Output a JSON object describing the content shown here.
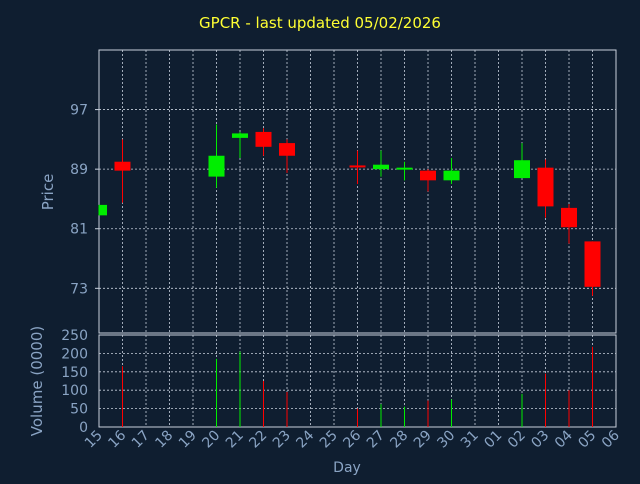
{
  "chart_data": {
    "type": "candlestick",
    "title": "GPCR - last updated 05/02/2026",
    "price_panel": {
      "ylabel": "Price",
      "ylim": [
        67,
        105
      ],
      "yticks": [
        73,
        81,
        89,
        97
      ]
    },
    "volume_panel": {
      "ylabel": "Volume (0000)",
      "ylim": [
        0,
        250
      ],
      "yticks": [
        0,
        50,
        100,
        150,
        200,
        250
      ]
    },
    "xlabel": "Day",
    "x_tick_labels": [
      "15",
      "16",
      "17",
      "18",
      "19",
      "20",
      "21",
      "22",
      "23",
      "24",
      "25",
      "26",
      "27",
      "28",
      "29",
      "30",
      "31",
      "01",
      "02",
      "03",
      "04",
      "05",
      "06"
    ],
    "grid": true,
    "colors": {
      "up": "#00ee00",
      "down": "#ff0000",
      "title": "#ffff33",
      "axis_text": "#8aa4c4",
      "background": "#0f1e30",
      "grid": "#c8d0dc"
    },
    "candles": [
      {
        "day": "15",
        "open": 82.8,
        "high": 84.2,
        "low": 82.8,
        "close": 84.2,
        "volume": 0
      },
      {
        "day": "16",
        "open": 90.0,
        "high": 93.0,
        "low": 84.5,
        "close": 88.8,
        "volume": 165
      },
      {
        "day": "20",
        "open": 88.0,
        "high": 95.0,
        "low": 86.5,
        "close": 90.8,
        "volume": 185
      },
      {
        "day": "21",
        "open": 93.2,
        "high": 94.0,
        "low": 90.5,
        "close": 93.8,
        "volume": 205
      },
      {
        "day": "22",
        "open": 94.0,
        "high": 94.5,
        "low": 90.8,
        "close": 92.0,
        "volume": 125
      },
      {
        "day": "23",
        "open": 92.5,
        "high": 93.0,
        "low": 88.5,
        "close": 90.8,
        "volume": 95
      },
      {
        "day": "26",
        "open": 89.5,
        "high": 91.5,
        "low": 87.0,
        "close": 89.3,
        "volume": 50
      },
      {
        "day": "27",
        "open": 89.0,
        "high": 91.5,
        "low": 88.0,
        "close": 89.6,
        "volume": 62
      },
      {
        "day": "28",
        "open": 89.0,
        "high": 90.0,
        "low": 87.5,
        "close": 89.2,
        "volume": 55
      },
      {
        "day": "29",
        "open": 88.8,
        "high": 89.0,
        "low": 86.0,
        "close": 87.5,
        "volume": 72
      },
      {
        "day": "30",
        "open": 87.5,
        "high": 90.5,
        "low": 87.0,
        "close": 88.8,
        "volume": 75
      },
      {
        "day": "02",
        "open": 87.8,
        "high": 92.5,
        "low": 87.8,
        "close": 90.2,
        "volume": 90
      },
      {
        "day": "03",
        "open": 89.2,
        "high": 90.3,
        "low": 82.5,
        "close": 84.0,
        "volume": 145
      },
      {
        "day": "04",
        "open": 83.8,
        "high": 84.3,
        "low": 79.0,
        "close": 81.2,
        "volume": 100
      },
      {
        "day": "05",
        "open": 79.3,
        "high": 79.3,
        "low": 72.0,
        "close": 73.2,
        "volume": 218
      }
    ]
  }
}
